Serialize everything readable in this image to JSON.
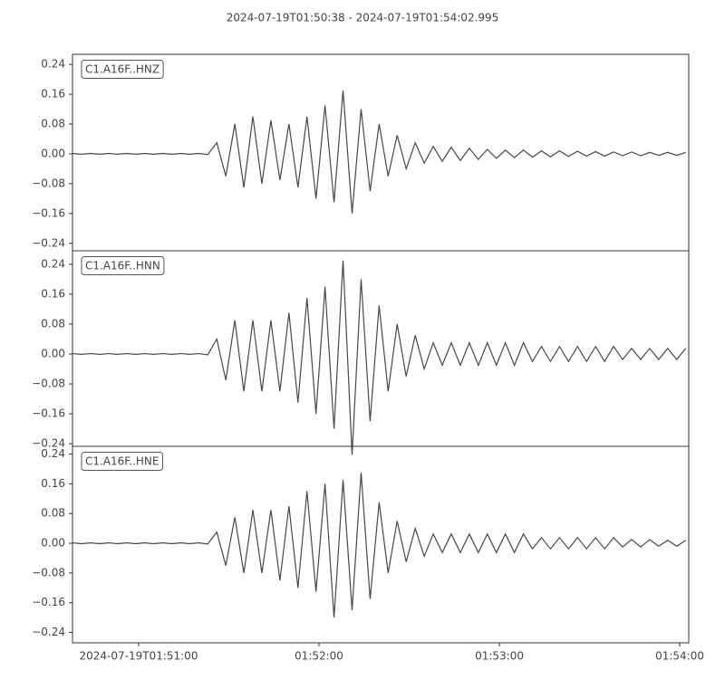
{
  "chart_data": {
    "type": "line",
    "title": "2024-07-19T01:50:38  -  2024-07-19T01:54:02.995",
    "xlim": [
      "2024-07-19T01:50:38",
      "2024-07-19T01:54:02.995"
    ],
    "xticks": [
      "2024-07-19T01:51:00",
      {
        "value": "2024-07-19T01:52:00",
        "label": "01:52:00"
      },
      {
        "value": "2024-07-19T01:53:00",
        "label": "01:53:00"
      },
      {
        "value": "2024-07-19T01:54:00",
        "label": "01:54:00"
      }
    ],
    "x": [
      "2024-07-19T01:50:38",
      "2024-07-19T01:50:41",
      "2024-07-19T01:50:44",
      "2024-07-19T01:50:47",
      "2024-07-19T01:50:50",
      "2024-07-19T01:50:53",
      "2024-07-19T01:50:56",
      "2024-07-19T01:50:59",
      "2024-07-19T01:51:02",
      "2024-07-19T01:51:05",
      "2024-07-19T01:51:08",
      "2024-07-19T01:51:11",
      "2024-07-19T01:51:14",
      "2024-07-19T01:51:17",
      "2024-07-19T01:51:20",
      "2024-07-19T01:51:23",
      "2024-07-19T01:51:26",
      "2024-07-19T01:51:29",
      "2024-07-19T01:51:32",
      "2024-07-19T01:51:35",
      "2024-07-19T01:51:38",
      "2024-07-19T01:51:41",
      "2024-07-19T01:51:44",
      "2024-07-19T01:51:47",
      "2024-07-19T01:51:50",
      "2024-07-19T01:51:53",
      "2024-07-19T01:51:56",
      "2024-07-19T01:51:59",
      "2024-07-19T01:52:02",
      "2024-07-19T01:52:05",
      "2024-07-19T01:52:08",
      "2024-07-19T01:52:11",
      "2024-07-19T01:52:14",
      "2024-07-19T01:52:17",
      "2024-07-19T01:52:20",
      "2024-07-19T01:52:23",
      "2024-07-19T01:52:26",
      "2024-07-19T01:52:29",
      "2024-07-19T01:52:32",
      "2024-07-19T01:52:35",
      "2024-07-19T01:52:38",
      "2024-07-19T01:52:41",
      "2024-07-19T01:52:44",
      "2024-07-19T01:52:47",
      "2024-07-19T01:52:50",
      "2024-07-19T01:52:53",
      "2024-07-19T01:52:56",
      "2024-07-19T01:52:59",
      "2024-07-19T01:53:02",
      "2024-07-19T01:53:05",
      "2024-07-19T01:53:08",
      "2024-07-19T01:53:11",
      "2024-07-19T01:53:14",
      "2024-07-19T01:53:17",
      "2024-07-19T01:53:20",
      "2024-07-19T01:53:23",
      "2024-07-19T01:53:26",
      "2024-07-19T01:53:29",
      "2024-07-19T01:53:32",
      "2024-07-19T01:53:35",
      "2024-07-19T01:53:38",
      "2024-07-19T01:53:41",
      "2024-07-19T01:53:44",
      "2024-07-19T01:53:47",
      "2024-07-19T01:53:50",
      "2024-07-19T01:53:53",
      "2024-07-19T01:53:56",
      "2024-07-19T01:53:59",
      "2024-07-19T01:54:02"
    ],
    "series": [
      {
        "name": "C1.A16F..HNZ",
        "color": "#474747",
        "ylim": [
          -0.26,
          0.267
        ],
        "yticks": [
          {
            "value": -0.24,
            "label": "−0.24"
          },
          {
            "value": -0.16,
            "label": "−0.16"
          },
          {
            "value": -0.08,
            "label": "−0.08"
          },
          {
            "value": 0,
            "label": "0.00"
          },
          0.08,
          0.16,
          0.24
        ],
        "values": [
          0.001,
          -0.001,
          0.001,
          -0.001,
          0.001,
          -0.001,
          0.001,
          -0.001,
          0.001,
          -0.001,
          0.001,
          -0.001,
          0.001,
          -0.001,
          0.001,
          -0.002,
          0.03,
          -0.06,
          0.08,
          -0.09,
          0.1,
          -0.08,
          0.09,
          -0.07,
          0.08,
          -0.09,
          0.1,
          -0.12,
          0.13,
          -0.13,
          0.17,
          -0.16,
          0.12,
          -0.1,
          0.08,
          -0.06,
          0.05,
          -0.04,
          0.03,
          -0.025,
          0.02,
          -0.02,
          0.018,
          -0.018,
          0.015,
          -0.015,
          0.012,
          -0.012,
          0.01,
          -0.01,
          0.01,
          -0.009,
          0.008,
          -0.008,
          0.008,
          -0.007,
          0.007,
          -0.006,
          0.006,
          -0.006,
          0.005,
          -0.005,
          0.005,
          -0.005,
          0.004,
          -0.004,
          0.004,
          -0.004,
          0.004
        ]
      },
      {
        "name": "C1.A16F..HNN",
        "color": "#474747",
        "ylim": [
          -0.247,
          0.276
        ],
        "yticks": [
          {
            "value": -0.24,
            "label": "−0.24"
          },
          {
            "value": -0.16,
            "label": "−0.16"
          },
          {
            "value": -0.08,
            "label": "−0.08"
          },
          {
            "value": 0,
            "label": "0.00"
          },
          0.08,
          0.16,
          0.24
        ],
        "values": [
          0.001,
          -0.001,
          0.001,
          -0.001,
          0.001,
          -0.001,
          0.001,
          -0.001,
          0.001,
          -0.001,
          0.001,
          -0.001,
          0.001,
          -0.001,
          0.001,
          -0.002,
          0.04,
          -0.07,
          0.09,
          -0.1,
          0.09,
          -0.1,
          0.09,
          -0.1,
          0.11,
          -0.13,
          0.15,
          -0.16,
          0.18,
          -0.2,
          0.25,
          -0.27,
          0.2,
          -0.18,
          0.13,
          -0.1,
          0.08,
          -0.06,
          0.05,
          -0.04,
          0.03,
          -0.03,
          0.03,
          -0.03,
          0.03,
          -0.03,
          0.03,
          -0.03,
          0.03,
          -0.03,
          0.03,
          -0.02,
          0.02,
          -0.02,
          0.02,
          -0.02,
          0.02,
          -0.02,
          0.02,
          -0.02,
          0.02,
          -0.015,
          0.015,
          -0.015,
          0.015,
          -0.015,
          0.015,
          -0.015,
          0.015
        ]
      },
      {
        "name": "C1.A16F..HNE",
        "color": "#474747",
        "ylim": [
          -0.268,
          0.261
        ],
        "yticks": [
          {
            "value": -0.24,
            "label": "−0.24"
          },
          {
            "value": -0.16,
            "label": "−0.16"
          },
          {
            "value": -0.08,
            "label": "−0.08"
          },
          {
            "value": 0,
            "label": "0.00"
          },
          0.08,
          0.16,
          0.24
        ],
        "values": [
          0.001,
          -0.001,
          0.001,
          -0.001,
          0.001,
          -0.001,
          0.001,
          -0.001,
          0.001,
          -0.001,
          0.001,
          -0.001,
          0.001,
          -0.001,
          0.001,
          -0.002,
          0.03,
          -0.06,
          0.07,
          -0.08,
          0.09,
          -0.08,
          0.09,
          -0.1,
          0.1,
          -0.12,
          0.14,
          -0.13,
          0.16,
          -0.2,
          0.17,
          -0.18,
          0.19,
          -0.15,
          0.11,
          -0.08,
          0.06,
          -0.05,
          0.04,
          -0.035,
          0.025,
          -0.025,
          0.025,
          -0.025,
          0.025,
          -0.025,
          0.025,
          -0.025,
          0.025,
          -0.025,
          0.025,
          -0.015,
          0.015,
          -0.015,
          0.015,
          -0.015,
          0.015,
          -0.015,
          0.015,
          -0.015,
          0.015,
          -0.01,
          0.01,
          -0.01,
          0.01,
          -0.008,
          0.008,
          -0.008,
          0.008
        ]
      }
    ]
  }
}
